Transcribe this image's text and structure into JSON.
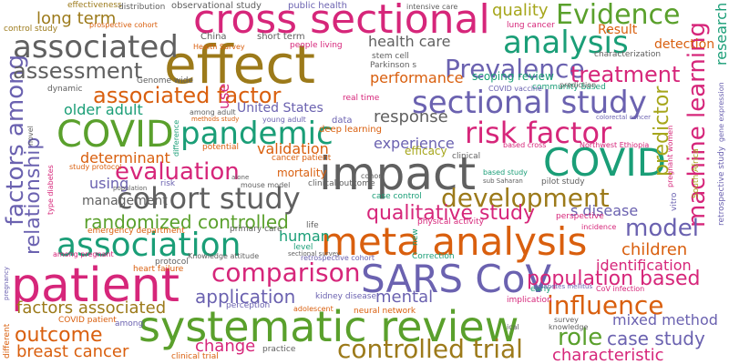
{
  "palette": {
    "green": "#5aa02c",
    "pink": "#d6267a",
    "gray": "#606060",
    "purple": "#6b62b0",
    "orange": "#d95f0e",
    "brown": "#9c7a1a",
    "teal": "#1a9e77",
    "olive": "#a6a61b"
  },
  "words": [
    {
      "text": "effect",
      "color": "#9c7a1a"
    },
    {
      "text": "cross sectional",
      "color": "#d6267a"
    },
    {
      "text": "impact",
      "color": "#606060"
    },
    {
      "text": "patient",
      "color": "#d6267a"
    },
    {
      "text": "systematic review",
      "color": "#5aa02c"
    },
    {
      "text": "meta analysis",
      "color": "#d95f0e"
    },
    {
      "text": "SARS CoV",
      "color": "#6b62b0"
    },
    {
      "text": "COVID",
      "color": "#1a9e77"
    },
    {
      "text": "COVID",
      "color": "#5aa02c"
    },
    {
      "text": "associated",
      "color": "#606060"
    },
    {
      "text": "association",
      "color": "#1a9e77"
    },
    {
      "text": "pandemic",
      "color": "#1a9e77"
    },
    {
      "text": "sectional study",
      "color": "#6b62b0"
    },
    {
      "text": "cohort study",
      "color": "#606060"
    },
    {
      "text": "analysis",
      "color": "#1a9e77"
    },
    {
      "text": "risk factor",
      "color": "#d6267a"
    },
    {
      "text": "evaluation",
      "color": "#d6267a"
    },
    {
      "text": "development",
      "color": "#9c7a1a"
    },
    {
      "text": "associated factor",
      "color": "#d95f0e"
    },
    {
      "text": "machine learning",
      "color": "#d6267a"
    },
    {
      "text": "factors among",
      "color": "#6b62b0"
    },
    {
      "text": "Prevalence",
      "color": "#6b62b0"
    },
    {
      "text": "treatment",
      "color": "#d6267a"
    },
    {
      "text": "Evidence",
      "color": "#5aa02c"
    },
    {
      "text": "controlled trial",
      "color": "#9c7a1a"
    },
    {
      "text": "comparison",
      "color": "#d6267a"
    },
    {
      "text": "influence",
      "color": "#d95f0e"
    },
    {
      "text": "model",
      "color": "#6b62b0"
    },
    {
      "text": "qualitative study",
      "color": "#d6267a"
    },
    {
      "text": "randomized controlled",
      "color": "#5aa02c"
    },
    {
      "text": "relationship",
      "color": "#6b62b0"
    },
    {
      "text": "population based",
      "color": "#d6267a"
    },
    {
      "text": "assessment",
      "color": "#606060"
    },
    {
      "text": "application",
      "color": "#6b62b0"
    },
    {
      "text": "outcome",
      "color": "#d95f0e"
    },
    {
      "text": "role",
      "color": "#5aa02c"
    },
    {
      "text": "factors associated",
      "color": "#9c7a1a"
    },
    {
      "text": "breast cancer",
      "color": "#d95f0e"
    },
    {
      "text": "predictor",
      "color": "#a6a61b"
    },
    {
      "text": "children",
      "color": "#d95f0e"
    },
    {
      "text": "identification",
      "color": "#d6267a"
    },
    {
      "text": "determinant",
      "color": "#d95f0e"
    },
    {
      "text": "case study",
      "color": "#6b62b0"
    },
    {
      "text": "characteristic",
      "color": "#d6267a"
    },
    {
      "text": "mixed method",
      "color": "#6b62b0"
    },
    {
      "text": "using",
      "color": "#6b62b0"
    },
    {
      "text": "response",
      "color": "#606060"
    },
    {
      "text": "experience",
      "color": "#6b62b0"
    },
    {
      "text": "older adult",
      "color": "#1a9e77"
    },
    {
      "text": "long term",
      "color": "#9c7a1a"
    },
    {
      "text": "change",
      "color": "#d6267a"
    },
    {
      "text": "mental",
      "color": "#6b62b0"
    },
    {
      "text": "health care",
      "color": "#606060"
    },
    {
      "text": "quality",
      "color": "#a6a61b"
    },
    {
      "text": "validation",
      "color": "#d95f0e"
    },
    {
      "text": "United States",
      "color": "#6b62b0"
    },
    {
      "text": "performance",
      "color": "#d95f0e"
    },
    {
      "text": "human",
      "color": "#1a9e77"
    },
    {
      "text": "s disease",
      "color": "#6b62b0"
    },
    {
      "text": "Result",
      "color": "#d95f0e"
    },
    {
      "text": "detection",
      "color": "#d95f0e"
    },
    {
      "text": "management",
      "color": "#606060"
    },
    {
      "text": "efficacy",
      "color": "#a6a61b"
    },
    {
      "text": "mortality",
      "color": "#d95f0e"
    },
    {
      "text": "scoping review",
      "color": "#1a9e77"
    },
    {
      "text": "research",
      "color": "#1a9e77"
    },
    {
      "text": "use",
      "color": "#d6267a"
    },
    {
      "text": "observational study",
      "color": "#606060"
    },
    {
      "text": "public health",
      "color": "#6b62b0"
    },
    {
      "text": "intensive care",
      "color": "#606060"
    },
    {
      "text": "prospective cohort",
      "color": "#d95f0e"
    },
    {
      "text": "lung cancer",
      "color": "#d6267a"
    },
    {
      "text": "control study",
      "color": "#9c7a1a"
    },
    {
      "text": "effectiveness",
      "color": "#9c7a1a"
    },
    {
      "text": "distribution",
      "color": "#606060"
    },
    {
      "text": "China",
      "color": "#606060"
    },
    {
      "text": "short term",
      "color": "#606060"
    },
    {
      "text": "people living",
      "color": "#d6267a"
    },
    {
      "text": "stem cell",
      "color": "#606060"
    },
    {
      "text": "Parkinson s",
      "color": "#606060"
    },
    {
      "text": "Health Survey",
      "color": "#d95f0e"
    },
    {
      "text": "Genome wide",
      "color": "#606060"
    },
    {
      "text": "dynamic",
      "color": "#606060"
    },
    {
      "text": "among adult",
      "color": "#606060"
    },
    {
      "text": "methods study",
      "color": "#d95f0e"
    },
    {
      "text": "young adult",
      "color": "#6b62b0"
    },
    {
      "text": "data",
      "color": "#6b62b0"
    },
    {
      "text": "deep learning",
      "color": "#d95f0e"
    },
    {
      "text": "real time",
      "color": "#d6267a"
    },
    {
      "text": "community based",
      "color": "#1a9e77"
    },
    {
      "text": "COVID vaccine",
      "color": "#6b62b0"
    },
    {
      "text": "prediction",
      "color": "#606060"
    },
    {
      "text": "characterization",
      "color": "#606060"
    },
    {
      "text": "colorectal cancer",
      "color": "#6b62b0"
    },
    {
      "text": "Northwest Ethiopia",
      "color": "#d6267a"
    },
    {
      "text": "clinical",
      "color": "#606060"
    },
    {
      "text": "based cross",
      "color": "#d6267a"
    },
    {
      "text": "based study",
      "color": "#1a9e77"
    },
    {
      "text": "pilot study",
      "color": "#606060"
    },
    {
      "text": "sub Saharan",
      "color": "#606060"
    },
    {
      "text": "pregnant women",
      "color": "#d6267a"
    },
    {
      "text": "South Africa",
      "color": "#a6a61b"
    },
    {
      "text": "retrospective study",
      "color": "#6b62b0"
    },
    {
      "text": "gene expression",
      "color": "#6b62b0"
    },
    {
      "text": "novel",
      "color": "#606060"
    },
    {
      "text": "potential",
      "color": "#d95f0e"
    },
    {
      "text": "cancer patient",
      "color": "#d95f0e"
    },
    {
      "text": "clinical outcome",
      "color": "#606060"
    },
    {
      "text": "case control",
      "color": "#1a9e77"
    },
    {
      "text": "perspective",
      "color": "#d6267a"
    },
    {
      "text": "incidence",
      "color": "#d6267a"
    },
    {
      "text": "study protocol",
      "color": "#d95f0e"
    },
    {
      "text": "type diabetes",
      "color": "#d6267a"
    },
    {
      "text": "emergency department",
      "color": "#d95f0e"
    },
    {
      "text": "primary care",
      "color": "#606060"
    },
    {
      "text": "physical activity",
      "color": "#d6267a"
    },
    {
      "text": "among pregnant",
      "color": "#d6267a"
    },
    {
      "text": "protocol",
      "color": "#606060"
    },
    {
      "text": "heart failure",
      "color": "#d95f0e"
    },
    {
      "text": "Knowledge attitude",
      "color": "#606060"
    },
    {
      "text": "level",
      "color": "#1a9e77"
    },
    {
      "text": "life",
      "color": "#606060"
    },
    {
      "text": "sectional survey",
      "color": "#606060"
    },
    {
      "text": "retrospective cohort",
      "color": "#6b62b0"
    },
    {
      "text": "Correction",
      "color": "#1a9e77"
    },
    {
      "text": "early",
      "color": "#1a9e77"
    },
    {
      "text": "knowledge",
      "color": "#606060"
    },
    {
      "text": "CoV infection",
      "color": "#d6267a"
    },
    {
      "text": "diabetes mellitus",
      "color": "#6b62b0"
    },
    {
      "text": "implication",
      "color": "#d6267a"
    },
    {
      "text": "survey",
      "color": "#606060"
    },
    {
      "text": "perception",
      "color": "#6b62b0"
    },
    {
      "text": "neural network",
      "color": "#d95f0e"
    },
    {
      "text": "kidney disease",
      "color": "#6b62b0"
    },
    {
      "text": "adolescent",
      "color": "#d95f0e"
    },
    {
      "text": "COVID patient",
      "color": "#d95f0e"
    },
    {
      "text": "different",
      "color": "#d95f0e"
    },
    {
      "text": "practice",
      "color": "#606060"
    },
    {
      "text": "clinical trial",
      "color": "#d95f0e"
    },
    {
      "text": "among",
      "color": "#6b62b0"
    },
    {
      "text": "risk",
      "color": "#6b62b0"
    },
    {
      "text": "population",
      "color": "#606060"
    },
    {
      "text": "cohort",
      "color": "#606060"
    },
    {
      "text": "difference",
      "color": "#1a9e77"
    },
    {
      "text": "alone",
      "color": "#606060"
    },
    {
      "text": "mouse model",
      "color": "#606060"
    },
    {
      "text": "new",
      "color": "#1a9e77"
    },
    {
      "text": "pregnancy",
      "color": "#6b62b0"
    },
    {
      "text": "vitro",
      "color": "#6b62b0"
    },
    {
      "text": "ical",
      "color": "#606060"
    }
  ]
}
